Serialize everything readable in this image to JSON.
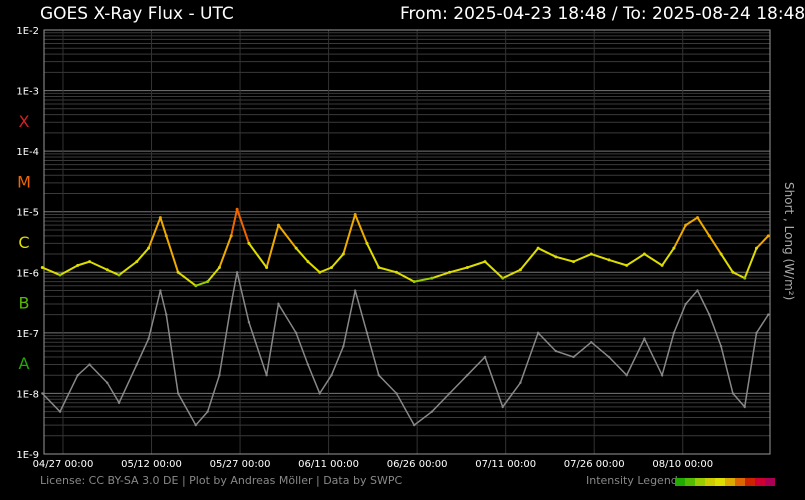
{
  "header": {
    "title": "GOES X-Ray Flux - UTC",
    "range": "From: 2025-04-23 18:48  /  To: 2025-08-24 18:48"
  },
  "footer": {
    "credits": "License: CC BY-SA 3.0 DE | Plot by Andreas Möller | Data by SWPC",
    "legend_label": "Intensity Legend",
    "legend_colors": [
      "#22aa00",
      "#55bb00",
      "#99cc00",
      "#cccc00",
      "#dddd00",
      "#ddaa00",
      "#dd6600",
      "#cc2200",
      "#cc0033",
      "#aa0055"
    ]
  },
  "chart_data": {
    "type": "line",
    "title": "GOES X-Ray Flux - UTC",
    "ylabel": "Short , Long (W/m²)",
    "yscale": "log",
    "ylim": [
      1e-09,
      0.01
    ],
    "xlim": [
      "2025-04-23 18:48",
      "2025-08-24 18:48"
    ],
    "y_tick_labels": [
      "1E-2",
      "1E-3",
      "1E-4",
      "1E-5",
      "1E-6",
      "1E-7",
      "1E-8",
      "1E-9"
    ],
    "flare_classes": [
      {
        "label": "X",
        "flux": 0.0001,
        "color": "#d42020"
      },
      {
        "label": "M",
        "flux": 1e-05,
        "color": "#ee6600"
      },
      {
        "label": "C",
        "flux": 1e-06,
        "color": "#dddd00"
      },
      {
        "label": "B",
        "flux": 1e-07,
        "color": "#55bb00"
      },
      {
        "label": "A",
        "flux": 1e-08,
        "color": "#22aa00"
      }
    ],
    "x_ticks": [
      {
        "date": "2025-04-27",
        "label": "04/27 00:00"
      },
      {
        "date": "2025-05-12",
        "label": "05/12 00:00"
      },
      {
        "date": "2025-05-27",
        "label": "05/27 00:00"
      },
      {
        "date": "2025-06-11",
        "label": "06/11 00:00"
      },
      {
        "date": "2025-06-26",
        "label": "06/26 00:00"
      },
      {
        "date": "2025-07-11",
        "label": "07/11 00:00"
      },
      {
        "date": "2025-07-26",
        "label": "07/26 00:00"
      },
      {
        "date": "2025-08-10",
        "label": "08/10 00:00"
      }
    ],
    "grid": true,
    "series": [
      {
        "name": "Long",
        "color": "gradient by intensity",
        "x": [
          "2025-04-23",
          "2025-04-26",
          "2025-04-29",
          "2025-05-01",
          "2025-05-04",
          "2025-05-06",
          "2025-05-09",
          "2025-05-11",
          "2025-05-13",
          "2025-05-14",
          "2025-05-16",
          "2025-05-19",
          "2025-05-21",
          "2025-05-23",
          "2025-05-25",
          "2025-05-26",
          "2025-05-28",
          "2025-05-31",
          "2025-06-02",
          "2025-06-05",
          "2025-06-07",
          "2025-06-09",
          "2025-06-11",
          "2025-06-13",
          "2025-06-15",
          "2025-06-17",
          "2025-06-19",
          "2025-06-22",
          "2025-06-25",
          "2025-06-28",
          "2025-07-01",
          "2025-07-04",
          "2025-07-07",
          "2025-07-10",
          "2025-07-13",
          "2025-07-16",
          "2025-07-19",
          "2025-07-22",
          "2025-07-25",
          "2025-07-28",
          "2025-07-31",
          "2025-08-03",
          "2025-08-06",
          "2025-08-08",
          "2025-08-10",
          "2025-08-12",
          "2025-08-14",
          "2025-08-16",
          "2025-08-18",
          "2025-08-20",
          "2025-08-22",
          "2025-08-24"
        ],
        "y": [
          1.2e-06,
          9e-07,
          1.3e-06,
          1.5e-06,
          1.1e-06,
          9e-07,
          1.5e-06,
          2.5e-06,
          8e-06,
          4e-06,
          1e-06,
          6e-07,
          7e-07,
          1.2e-06,
          4e-06,
          1.1e-05,
          3e-06,
          1.2e-06,
          6e-06,
          2.5e-06,
          1.5e-06,
          1e-06,
          1.2e-06,
          2e-06,
          9e-06,
          3e-06,
          1.2e-06,
          1e-06,
          7e-07,
          8e-07,
          1e-06,
          1.2e-06,
          1.5e-06,
          8e-07,
          1.1e-06,
          2.5e-06,
          1.8e-06,
          1.5e-06,
          2e-06,
          1.6e-06,
          1.3e-06,
          2e-06,
          1.3e-06,
          2.5e-06,
          6e-06,
          8e-06,
          4e-06,
          2e-06,
          1e-06,
          8e-07,
          2.5e-06,
          4e-06
        ]
      },
      {
        "name": "Short",
        "color": "#888888",
        "x": [
          "2025-04-23",
          "2025-04-26",
          "2025-04-29",
          "2025-05-01",
          "2025-05-04",
          "2025-05-06",
          "2025-05-09",
          "2025-05-11",
          "2025-05-13",
          "2025-05-14",
          "2025-05-16",
          "2025-05-19",
          "2025-05-21",
          "2025-05-23",
          "2025-05-25",
          "2025-05-26",
          "2025-05-28",
          "2025-05-31",
          "2025-06-02",
          "2025-06-05",
          "2025-06-07",
          "2025-06-09",
          "2025-06-11",
          "2025-06-13",
          "2025-06-15",
          "2025-06-17",
          "2025-06-19",
          "2025-06-22",
          "2025-06-25",
          "2025-06-28",
          "2025-07-01",
          "2025-07-04",
          "2025-07-07",
          "2025-07-10",
          "2025-07-13",
          "2025-07-16",
          "2025-07-19",
          "2025-07-22",
          "2025-07-25",
          "2025-07-28",
          "2025-07-31",
          "2025-08-03",
          "2025-08-06",
          "2025-08-08",
          "2025-08-10",
          "2025-08-12",
          "2025-08-14",
          "2025-08-16",
          "2025-08-18",
          "2025-08-20",
          "2025-08-22",
          "2025-08-24"
        ],
        "y": [
          1e-08,
          5e-09,
          2e-08,
          3e-08,
          1.5e-08,
          7e-09,
          3e-08,
          8e-08,
          5e-07,
          2e-07,
          1e-08,
          3e-09,
          5e-09,
          2e-08,
          3e-07,
          1e-06,
          1.5e-07,
          2e-08,
          3e-07,
          1e-07,
          3e-08,
          1e-08,
          2e-08,
          6e-08,
          5e-07,
          1e-07,
          2e-08,
          1e-08,
          3e-09,
          5e-09,
          1e-08,
          2e-08,
          4e-08,
          6e-09,
          1.5e-08,
          1e-07,
          5e-08,
          4e-08,
          7e-08,
          4e-08,
          2e-08,
          8e-08,
          2e-08,
          1e-07,
          3e-07,
          5e-07,
          2e-07,
          6e-08,
          1e-08,
          6e-09,
          1e-07,
          2e-07
        ]
      }
    ]
  }
}
